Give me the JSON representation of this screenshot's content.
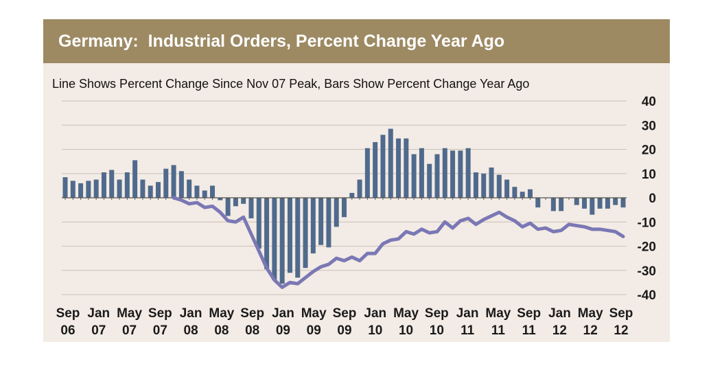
{
  "chart_data": {
    "type": "bar",
    "title": "Germany:  Industrial Orders, Percent Change Year Ago",
    "subtitle": "Line Shows Percent Change Since Nov 07 Peak, Bars Show Percent Change Year Ago",
    "ylim": [
      -40,
      40
    ],
    "yticks": [
      40,
      30,
      20,
      10,
      0,
      -10,
      -20,
      -30,
      -40
    ],
    "grid": true,
    "x_start": "Sep 06",
    "x_end": "Sep 12",
    "xtick_labels": [
      {
        "month": "Sep",
        "year": "06"
      },
      {
        "month": "Jan",
        "year": "07"
      },
      {
        "month": "May",
        "year": "07"
      },
      {
        "month": "Sep",
        "year": "07"
      },
      {
        "month": "Jan",
        "year": "08"
      },
      {
        "month": "May",
        "year": "08"
      },
      {
        "month": "Sep",
        "year": "08"
      },
      {
        "month": "Jan",
        "year": "09"
      },
      {
        "month": "May",
        "year": "09"
      },
      {
        "month": "Sep",
        "year": "09"
      },
      {
        "month": "Jan",
        "year": "10"
      },
      {
        "month": "May",
        "year": "10"
      },
      {
        "month": "Sep",
        "year": "10"
      },
      {
        "month": "Jan",
        "year": "11"
      },
      {
        "month": "May",
        "year": "11"
      },
      {
        "month": "Sep",
        "year": "11"
      },
      {
        "month": "Jan",
        "year": "12"
      },
      {
        "month": "May",
        "year": "12"
      },
      {
        "month": "Sep",
        "year": "12"
      }
    ],
    "series": [
      {
        "kind": "bar",
        "color": "#4f6a8c",
        "values": [
          8.5,
          7,
          6,
          7,
          7.5,
          10.5,
          11.5,
          7.5,
          10.5,
          15.5,
          7.5,
          5,
          6.5,
          12,
          13.5,
          11,
          7.5,
          5,
          3,
          5,
          -1,
          -7.5,
          -3.5,
          -2.5,
          -8.5,
          -21,
          -29.5,
          -34,
          -35.5,
          -31,
          -33,
          -29,
          -23,
          -19.5,
          -20.5,
          -12,
          -8,
          2,
          7.5,
          20.5,
          23,
          26,
          28.5,
          24.5,
          24.5,
          18,
          20.5,
          14,
          18,
          20.5,
          19.5,
          19.5,
          20.5,
          10.5,
          10,
          12.5,
          9.5,
          7.5,
          4.5,
          2.5,
          3.5,
          -4,
          0,
          -5.5,
          -5.5,
          0,
          -3,
          -4.5,
          -7,
          -4.5,
          -4.5,
          -3,
          -4
        ]
      },
      {
        "kind": "line",
        "color": "#7a78b4",
        "values": [
          null,
          null,
          null,
          null,
          null,
          null,
          null,
          null,
          null,
          null,
          null,
          null,
          null,
          null,
          0,
          -1,
          -2.5,
          -2,
          -4,
          -3.5,
          -6,
          -9.5,
          -10,
          -8,
          -15,
          -22,
          -29,
          -34,
          -37,
          -35,
          -35.5,
          -33,
          -30.5,
          -28.5,
          -27.5,
          -25,
          -26,
          -24.5,
          -26,
          -23,
          -23,
          -19,
          -17.5,
          -17,
          -14,
          -15,
          -13,
          -14.5,
          -14,
          -10,
          -12.5,
          -9.5,
          -8.5,
          -11,
          -9,
          -7.5,
          -6,
          -8,
          -9.5,
          -12,
          -10.5,
          -13,
          -12.5,
          -14,
          -13.5,
          -11,
          -11.5,
          -12,
          -13,
          -13,
          -13.5,
          -14,
          -16
        ]
      }
    ]
  }
}
